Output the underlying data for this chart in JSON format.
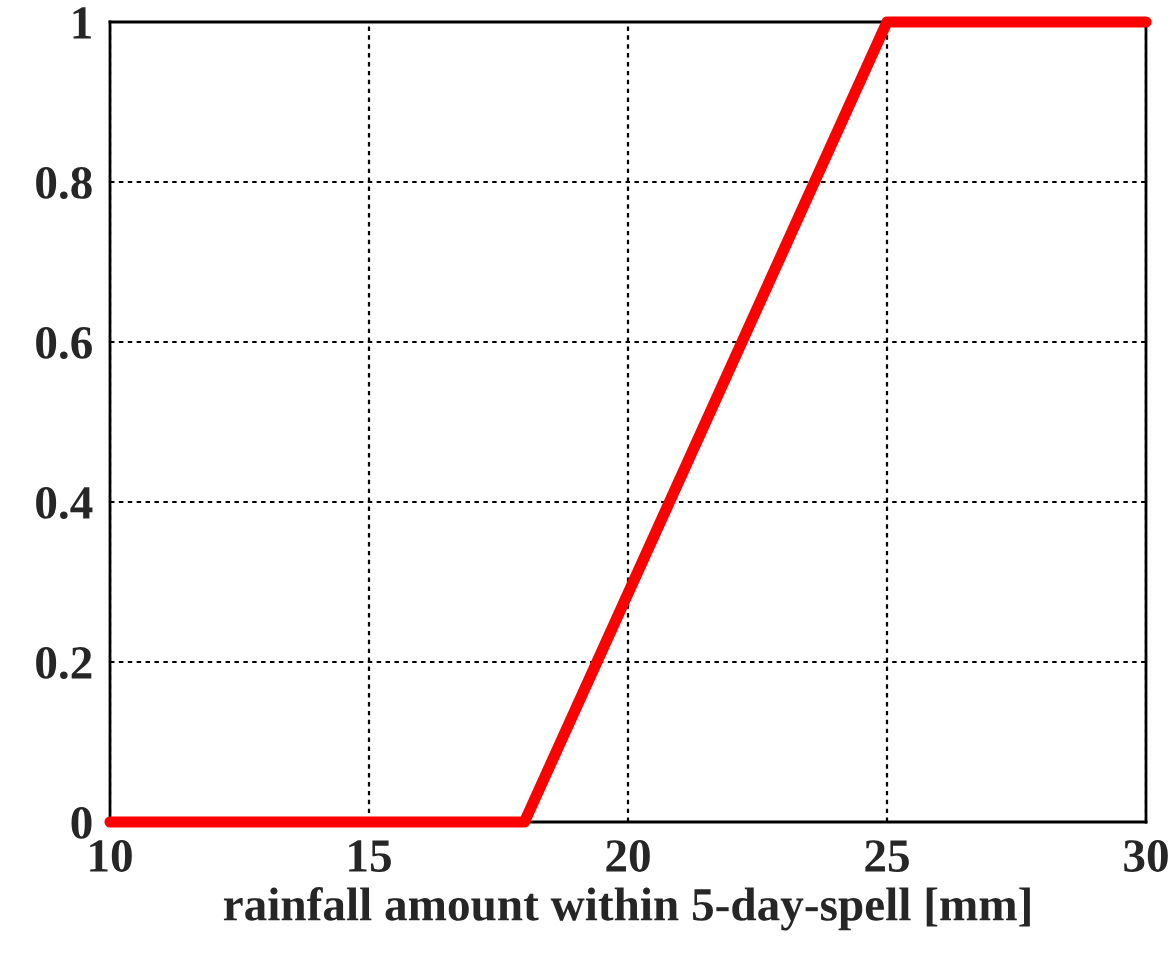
{
  "chart_data": {
    "type": "line",
    "xlabel": "rainfall amount within 5-day-spell [mm]",
    "x": [
      10,
      18,
      25,
      30
    ],
    "series": [
      {
        "color": "#ff0000",
        "values": [
          0,
          0,
          1,
          1
        ]
      }
    ],
    "xlim": [
      10,
      30
    ],
    "xticks": [
      10,
      15,
      20,
      25,
      30
    ],
    "ylim": [
      0,
      1
    ],
    "yticks": [
      0,
      0.2,
      0.4,
      0.6,
      0.8,
      1
    ],
    "grid": true,
    "line_style": "solid",
    "marker": "none"
  }
}
